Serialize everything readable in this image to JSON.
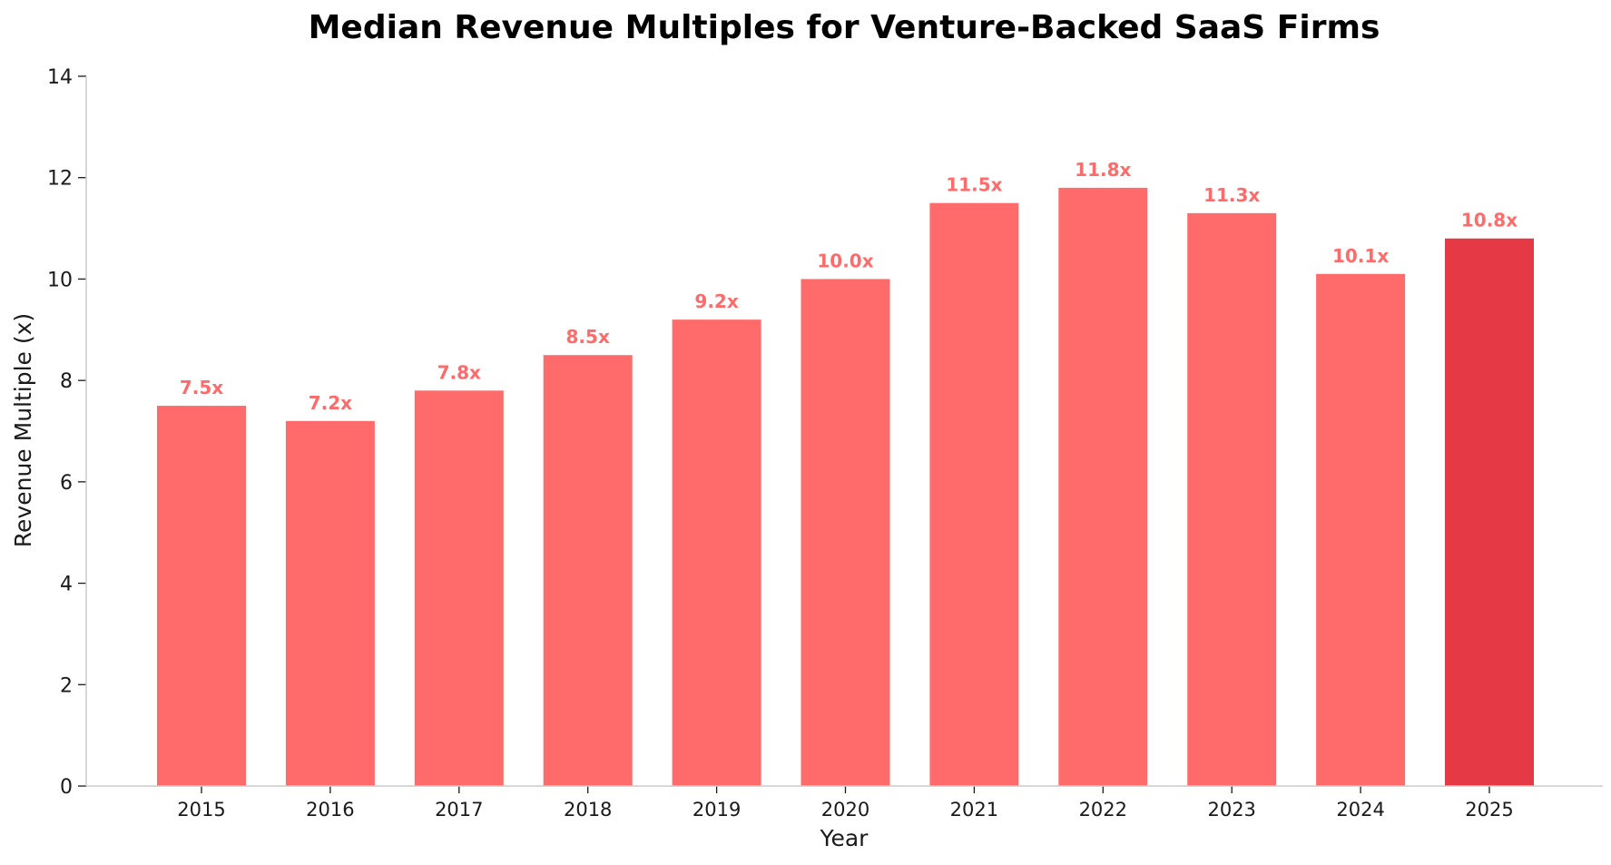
{
  "chart_data": {
    "type": "bar",
    "title": "Median Revenue Multiples for Venture-Backed SaaS Firms",
    "xlabel": "Year",
    "ylabel": "Revenue Multiple (x)",
    "categories": [
      "2015",
      "2016",
      "2017",
      "2018",
      "2019",
      "2020",
      "2021",
      "2022",
      "2023",
      "2024",
      "2025"
    ],
    "values": [
      7.5,
      7.2,
      7.8,
      8.5,
      9.2,
      10.0,
      11.5,
      11.8,
      11.3,
      10.1,
      10.8
    ],
    "data_labels": [
      "7.5x",
      "7.2x",
      "7.8x",
      "8.5x",
      "9.2x",
      "10.0x",
      "11.5x",
      "11.8x",
      "11.3x",
      "10.1x",
      "10.8x"
    ],
    "ylim": [
      0,
      14
    ],
    "yticks": [
      0,
      2,
      4,
      6,
      8,
      10,
      12,
      14
    ],
    "grid": false,
    "legend": "none",
    "highlight_index": 10,
    "colors": {
      "bar": "#ff6b6b",
      "highlight_bar": "#e63946",
      "data_label": "#ff6b6b",
      "axis": "#cccccc"
    }
  }
}
